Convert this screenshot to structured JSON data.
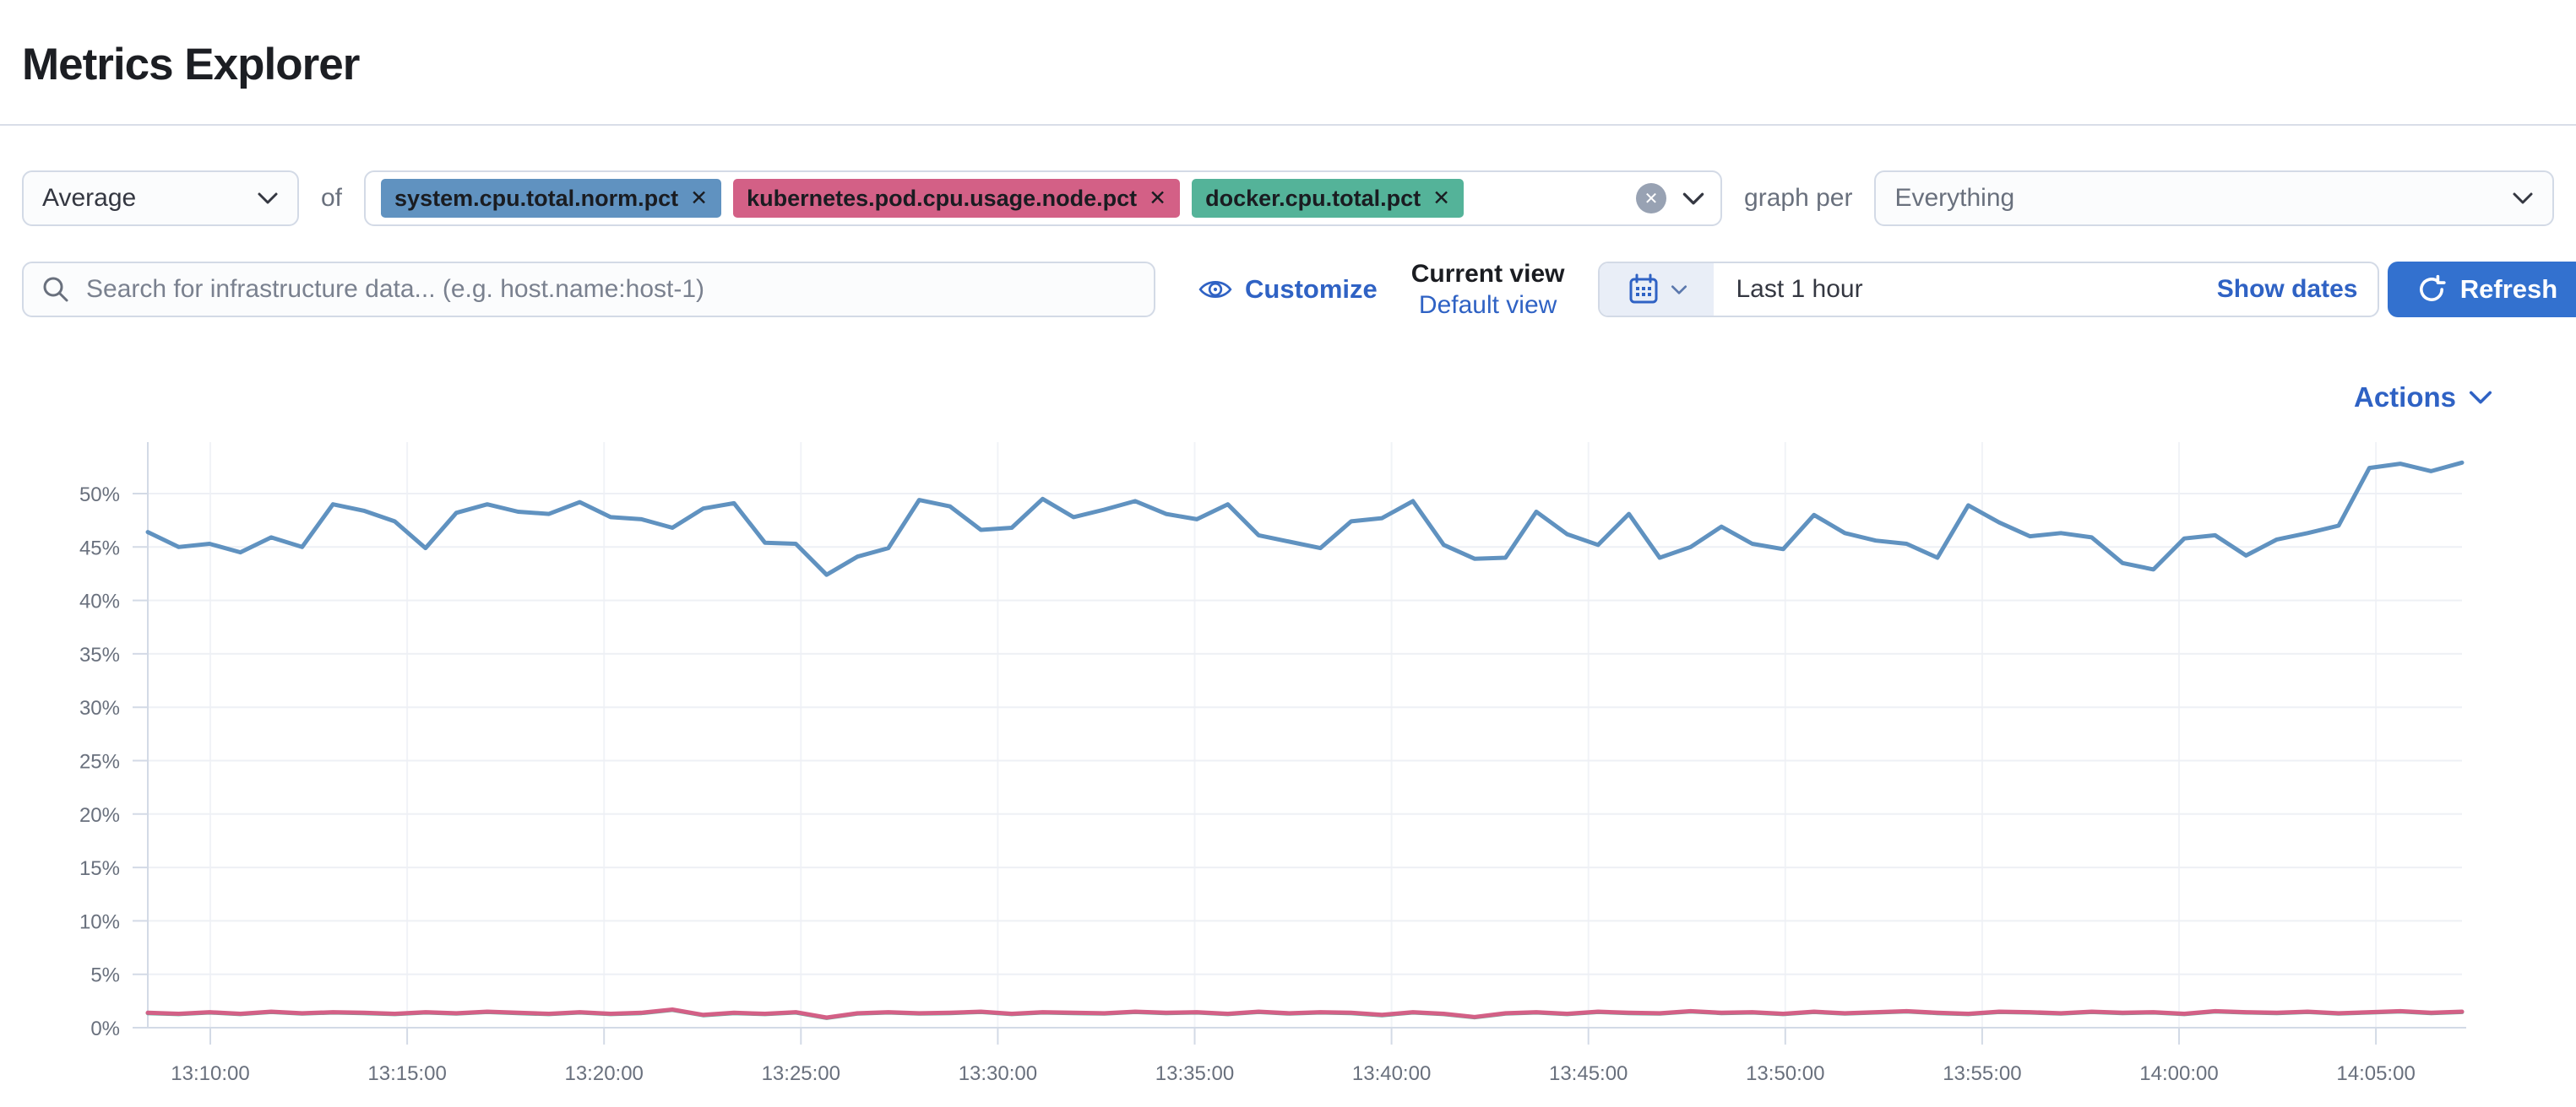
{
  "page": {
    "title": "Metrics Explorer"
  },
  "icons": {
    "close_glyph": "✕"
  },
  "colors": {
    "accent_button": "#3371CF",
    "link_blue": "#2F62C4",
    "field_border": "#D3DAE6",
    "muted_text": "#69707D",
    "title_text": "#1C1E23",
    "clear_circle": "#98A2B3"
  },
  "aggregation_row": {
    "aggregation": {
      "value": "Average"
    },
    "of_label": "of",
    "metrics": [
      {
        "label": "system.cpu.total.norm.pct",
        "color": "#6092C0"
      },
      {
        "label": "kubernetes.pod.cpu.usage.node.pct",
        "color": "#D36086"
      },
      {
        "label": "docker.cpu.total.pct",
        "color": "#54B399"
      }
    ],
    "graph_per_label": "graph per",
    "group_by": {
      "value": "Everything"
    }
  },
  "toolbar": {
    "search": {
      "placeholder": "Search for infrastructure data... (e.g. host.name:host-1)"
    },
    "customize_label": "Customize",
    "current_view_label": "Current view",
    "default_view_label": "Default view",
    "time_range": {
      "value": "Last 1 hour",
      "show_dates_label": "Show dates"
    },
    "refresh_label": "Refresh"
  },
  "chart_header": {
    "actions_label": "Actions"
  },
  "chart_data": {
    "type": "line",
    "title": "",
    "xlabel": "",
    "ylabel": "",
    "grid": true,
    "legend_position": "none",
    "ylim": [
      0,
      55
    ],
    "x_range": [
      "13:08:30",
      "14:07:00"
    ],
    "x_tick_labels": [
      "13:10:00",
      "13:15:00",
      "13:20:00",
      "13:25:00",
      "13:30:00",
      "13:35:00",
      "13:40:00",
      "13:45:00",
      "13:50:00",
      "13:55:00",
      "14:00:00",
      "14:05:00"
    ],
    "y_tick_labels": [
      "0%",
      "5%",
      "10%",
      "15%",
      "20%",
      "25%",
      "30%",
      "35%",
      "40%",
      "45%",
      "50%"
    ],
    "unit": "%",
    "series": [
      {
        "name": "Average system.cpu.total.norm.pct",
        "color": "#6092C0",
        "values": [
          46.4,
          45.0,
          45.3,
          44.5,
          45.9,
          45.0,
          49.0,
          48.4,
          47.4,
          44.9,
          48.2,
          49.0,
          48.3,
          48.1,
          49.2,
          47.8,
          47.6,
          46.8,
          48.6,
          49.1,
          45.4,
          45.3,
          42.4,
          44.1,
          44.9,
          49.4,
          48.8,
          46.6,
          46.8,
          49.5,
          47.8,
          48.5,
          49.3,
          48.1,
          47.6,
          49.0,
          46.1,
          45.5,
          44.9,
          47.4,
          47.7,
          49.3,
          45.2,
          43.9,
          44.0,
          48.3,
          46.2,
          45.2,
          48.1,
          44.0,
          45.0,
          46.9,
          45.3,
          44.8,
          48.0,
          46.3,
          45.6,
          45.3,
          44.0,
          48.9,
          47.3,
          46.0,
          46.3,
          45.9,
          43.5,
          42.9,
          45.8,
          46.1,
          44.2,
          45.7,
          46.3,
          47.0,
          52.4,
          52.8,
          52.1,
          52.9
        ]
      },
      {
        "name": "Average kubernetes.pod.cpu.usage.node.pct",
        "color": "#D36086",
        "values": [
          1.4,
          1.3,
          1.45,
          1.3,
          1.5,
          1.35,
          1.45,
          1.4,
          1.3,
          1.45,
          1.35,
          1.5,
          1.4,
          1.3,
          1.45,
          1.3,
          1.4,
          1.7,
          1.2,
          1.4,
          1.3,
          1.45,
          0.95,
          1.35,
          1.45,
          1.35,
          1.4,
          1.5,
          1.3,
          1.45,
          1.4,
          1.35,
          1.5,
          1.4,
          1.45,
          1.3,
          1.5,
          1.35,
          1.45,
          1.4,
          1.2,
          1.45,
          1.3,
          1.0,
          1.35,
          1.45,
          1.3,
          1.5,
          1.4,
          1.35,
          1.55,
          1.4,
          1.45,
          1.3,
          1.5,
          1.35,
          1.45,
          1.55,
          1.4,
          1.3,
          1.5,
          1.45,
          1.35,
          1.5,
          1.4,
          1.45,
          1.3,
          1.55,
          1.45,
          1.4,
          1.5,
          1.35,
          1.45,
          1.55,
          1.4,
          1.5
        ]
      },
      {
        "name": "Average docker.cpu.total.pct",
        "color": "#54B399",
        "values": [
          1.37,
          1.27,
          1.42,
          1.27,
          1.47,
          1.32,
          1.42,
          1.37,
          1.27,
          1.42,
          1.32,
          1.47,
          1.37,
          1.27,
          1.42,
          1.27,
          1.37,
          1.67,
          1.17,
          1.37,
          1.27,
          1.42,
          0.92,
          1.32,
          1.42,
          1.32,
          1.37,
          1.47,
          1.27,
          1.42,
          1.37,
          1.32,
          1.47,
          1.37,
          1.42,
          1.27,
          1.47,
          1.32,
          1.42,
          1.37,
          1.17,
          1.42,
          1.27,
          0.97,
          1.32,
          1.42,
          1.27,
          1.47,
          1.37,
          1.32,
          1.52,
          1.37,
          1.42,
          1.27,
          1.47,
          1.32,
          1.42,
          1.52,
          1.37,
          1.27,
          1.47,
          1.42,
          1.32,
          1.47,
          1.37,
          1.42,
          1.27,
          1.52,
          1.42,
          1.37,
          1.47,
          1.32,
          1.42,
          1.52,
          1.37,
          1.47
        ]
      }
    ]
  }
}
